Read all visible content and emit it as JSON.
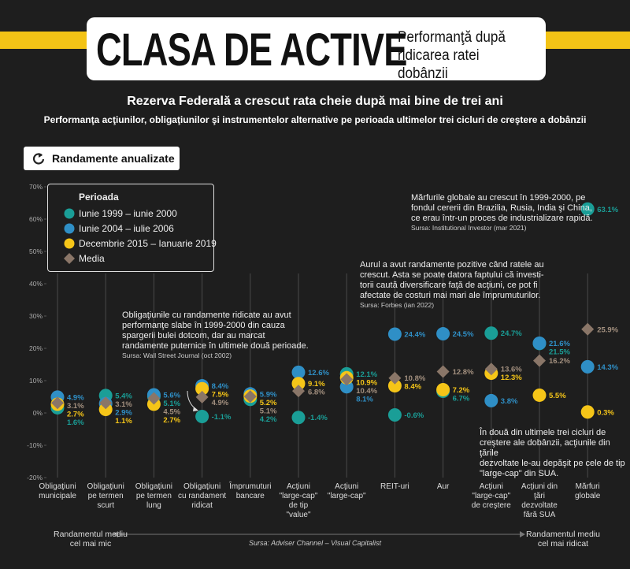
{
  "header": {
    "title": "CLASA DE ACTIVE",
    "subtitle": "Performanţă după\nridicarea ratei dobânzii"
  },
  "button": "Randamente anualizate",
  "chart_data": {
    "type": "dot",
    "title": "Rezerva Federală a crescut rata cheie după mai bine de trei ani",
    "subtitle": "Performanţa acţiunilor, obligaţiunilor şi instrumentelor alternative pe perioada ultimelor trei cicluri de creştere a dobânzii",
    "legend_title": "Perioada",
    "categories": [
      "Obligaţiuni\nmunicipale",
      "Obligaţiuni\npe  termen\nscurt",
      "Obligaţiuni\npe  termen\nlung",
      "Obligaţiuni\ncu randament\nridicat",
      "Împrumuturi\nbancare",
      "Acţiuni\n\"large-cap\"\nde tip\n\"value\"",
      "Acţiuni\n\"large-cap\"",
      "REIT-uri",
      "Aur",
      "Acţiuni\n\"large-cap\"\nde creştere",
      "Acţiuni din\nţări\ndezvoltate\nfără SUA",
      "Mărfuri\nglobale"
    ],
    "series": [
      {
        "name": "Iunie 1999 – iunie 2000",
        "color": "#1a9e97",
        "marker": "circle",
        "values": [
          1.6,
          5.4,
          5.1,
          -1.1,
          4.2,
          -1.4,
          12.1,
          -0.6,
          6.7,
          24.7,
          21.5,
          63.1
        ],
        "value_labels": [
          "1.6%",
          "5.4%",
          "5.1%",
          "-1.1%",
          "4.2%",
          "-1.4%",
          "12.1%",
          "-0.6%",
          "6.7%",
          "24.7%",
          "21.5%",
          "63.1%"
        ]
      },
      {
        "name": "Iunie 2004 – iulie 2006",
        "color": "#2f8fc6",
        "marker": "circle",
        "values": [
          4.9,
          2.9,
          5.6,
          8.4,
          5.9,
          12.6,
          8.1,
          24.4,
          24.5,
          3.8,
          21.6,
          14.3
        ],
        "value_labels": [
          "4.9%",
          "2.9%",
          "5.6%",
          "8.4%",
          "5.9%",
          "12.6%",
          "8.1%",
          "24.4%",
          "24.5%",
          "3.8%",
          "21.6%",
          "14.3%"
        ]
      },
      {
        "name": "Decembrie 2015 – Ianuarie 2019",
        "color": "#f5c518",
        "marker": "circle",
        "values": [
          2.7,
          1.1,
          2.7,
          7.5,
          5.2,
          9.1,
          10.9,
          8.4,
          7.2,
          12.3,
          5.5,
          0.3
        ],
        "value_labels": [
          "2.7%",
          "1.1%",
          "2.7%",
          "7.5%",
          "5.2%",
          "9.1%",
          "10.9%",
          "8.4%",
          "7.2%",
          "12.3%",
          "5.5%",
          "0.3%"
        ]
      },
      {
        "name": "Media",
        "color": "#8a7668",
        "label_color": "#a3907f",
        "marker": "diamond",
        "values": [
          3.1,
          3.1,
          4.5,
          4.9,
          5.1,
          6.8,
          10.4,
          10.8,
          12.8,
          13.6,
          16.2,
          25.9
        ],
        "value_labels": [
          "3.1%",
          "3.1%",
          "4.5%",
          "4.9%",
          "5.1%",
          "6.8%",
          "10.4%",
          "10.8%",
          "12.8%",
          "13.6%",
          "16.2%",
          "25.9%"
        ]
      }
    ],
    "ylim": [
      -20,
      70
    ],
    "yticks": [
      {
        "value": -20,
        "label": "-20%"
      },
      {
        "value": -10,
        "label": "-10%"
      },
      {
        "value": 0,
        "label": "0%"
      },
      {
        "value": 10,
        "label": "10%"
      },
      {
        "value": 20,
        "label": "20%"
      },
      {
        "value": 30,
        "label": "30%"
      },
      {
        "value": 40,
        "label": "40%"
      },
      {
        "value": 50,
        "label": "50%"
      },
      {
        "value": 60,
        "label": "60%"
      },
      {
        "value": 70,
        "label": "70%"
      }
    ],
    "grid": false,
    "legend_position": "upper left",
    "annotations": [
      {
        "text": "Obligaţiunile cu randamente ridicate au avut\nperformanţe slabe în 1999-2000 din cauza\nspargerii bulei dotcom, dar au marcat\nrandamente puternice în ultimele două perioade.",
        "source": "Sursa: Wall Street Journal (oct 2002)"
      },
      {
        "text": "Aurul a avut randamente pozitive când ratele au\ncrescut. Asta se poate datora faptului că investi-\ntorii caută diversificare faţă de acţiuni, ce pot fi\nafectate de costuri mai mari ale împrumuturilor.",
        "source": "Sursa: Forbes (ian 2022)"
      },
      {
        "text": "Mărfurile globale au crescut în 1999-2000, pe\nfondul cererii din Brazilia, Rusia, India şi China,\nce erau într-un proces de industrializare rapidă.",
        "source": "Sursa: Institutional Investor (mar 2021)"
      },
      {
        "text": "În două din ultimele trei cicluri de\ncreştere ale dobânzii, acţiunile din ţările\ndezvoltate le-au depăşit pe cele de tip\n\"large-cap\" din SUA."
      }
    ]
  },
  "footer": {
    "left": "Randamentul mediu\ncel mai mic",
    "source": "Sursa: Adviser Channel – Visual Capitalist",
    "right": "Randamentul mediu\ncel mai ridicat"
  }
}
